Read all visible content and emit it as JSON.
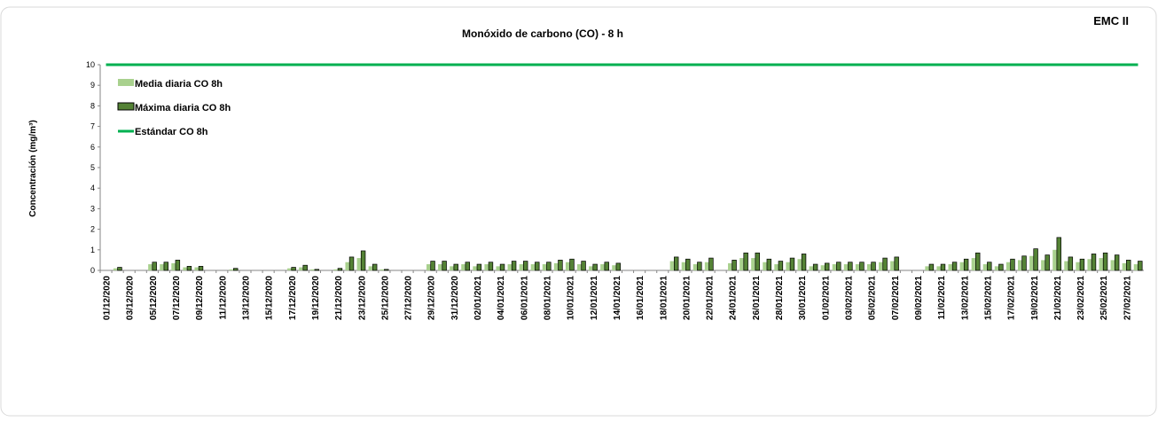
{
  "chart_data": {
    "type": "bar",
    "title": "Monóxido de carbono (CO) - 8 h",
    "station": "EMC II",
    "ylabel": "Concentración (mg/m³)",
    "ylim": [
      0,
      10
    ],
    "yticks": [
      0,
      1,
      2,
      3,
      4,
      5,
      6,
      7,
      8,
      9,
      10
    ],
    "legend": "upper left",
    "categories": [
      "01/12/2020",
      null,
      "03/12/2020",
      null,
      "05/12/2020",
      null,
      "07/12/2020",
      null,
      "09/12/2020",
      null,
      "11/12/2020",
      null,
      "13/12/2020",
      null,
      "15/12/2020",
      null,
      "17/12/2020",
      null,
      "19/12/2020",
      null,
      "21/12/2020",
      null,
      "23/12/2020",
      null,
      "25/12/2020",
      null,
      "27/12/2020",
      null,
      "29/12/2020",
      null,
      "31/12/2020",
      null,
      "02/01/2021",
      null,
      "04/01/2021",
      null,
      "06/01/2021",
      null,
      "08/01/2021",
      null,
      "10/01/2021",
      null,
      "12/01/2021",
      null,
      "14/01/2021",
      null,
      "16/01/2021",
      null,
      "18/01/2021",
      null,
      "20/01/2021",
      null,
      "22/01/2021",
      null,
      "24/01/2021",
      null,
      "26/01/2021",
      null,
      "28/01/2021",
      null,
      "30/01/2021",
      null,
      "01/02/2021",
      null,
      "03/02/2021",
      null,
      "05/02/2021",
      null,
      "07/02/2021",
      null,
      "09/02/2021",
      null,
      "11/02/2021",
      null,
      "13/02/2021",
      null,
      "15/02/2021",
      null,
      "17/02/2021",
      null,
      "19/02/2021",
      null,
      "21/02/2021",
      null,
      "23/02/2021",
      null,
      "25/02/2021",
      null,
      "27/02/2021",
      null
    ],
    "series": [
      {
        "name": "Media diaria CO 8h",
        "kind": "bar",
        "color": "#a9d18e",
        "values": [
          null,
          0.1,
          null,
          null,
          0.3,
          0.3,
          0.35,
          0.15,
          0.15,
          null,
          null,
          0.05,
          null,
          null,
          null,
          null,
          0.1,
          0.15,
          0.05,
          null,
          0.05,
          0.4,
          0.6,
          0.2,
          0.05,
          null,
          null,
          null,
          0.3,
          0.3,
          0.2,
          0.3,
          0.2,
          0.3,
          0.2,
          0.3,
          0.3,
          0.3,
          0.3,
          0.35,
          0.4,
          0.3,
          0.2,
          0.3,
          0.25,
          null,
          null,
          null,
          null,
          0.45,
          0.4,
          0.3,
          0.4,
          null,
          0.35,
          0.6,
          0.6,
          0.4,
          0.3,
          0.4,
          0.55,
          0.2,
          0.25,
          0.3,
          0.3,
          0.3,
          0.3,
          0.4,
          0.45,
          null,
          null,
          0.2,
          0.2,
          0.3,
          0.4,
          0.6,
          0.3,
          0.2,
          0.4,
          0.5,
          0.7,
          0.5,
          1.0,
          0.45,
          0.4,
          0.55,
          0.6,
          0.5,
          0.35,
          0.3
        ]
      },
      {
        "name": "Máxima diaria CO 8h",
        "kind": "bar",
        "color": "#548235",
        "values": [
          null,
          0.15,
          null,
          null,
          0.4,
          0.4,
          0.5,
          0.2,
          0.2,
          null,
          null,
          0.1,
          null,
          null,
          null,
          null,
          0.15,
          0.25,
          0.05,
          null,
          0.1,
          0.65,
          0.95,
          0.3,
          0.05,
          null,
          null,
          null,
          0.45,
          0.45,
          0.3,
          0.4,
          0.3,
          0.4,
          0.3,
          0.45,
          0.45,
          0.4,
          0.4,
          0.5,
          0.55,
          0.45,
          0.3,
          0.4,
          0.35,
          null,
          null,
          null,
          null,
          0.65,
          0.55,
          0.4,
          0.6,
          null,
          0.5,
          0.85,
          0.85,
          0.55,
          0.45,
          0.6,
          0.8,
          0.3,
          0.35,
          0.4,
          0.4,
          0.4,
          0.4,
          0.6,
          0.65,
          null,
          null,
          0.3,
          0.3,
          0.4,
          0.55,
          0.85,
          0.4,
          0.3,
          0.55,
          0.7,
          1.05,
          0.75,
          1.6,
          0.65,
          0.55,
          0.8,
          0.85,
          0.75,
          0.5,
          0.45
        ]
      },
      {
        "name": "Estándar CO 8h",
        "kind": "line",
        "color": "#00b050",
        "values": [
          10,
          10,
          10,
          10,
          10,
          10,
          10,
          10,
          10,
          10,
          10,
          10,
          10,
          10,
          10,
          10,
          10,
          10,
          10,
          10,
          10,
          10,
          10,
          10,
          10,
          10,
          10,
          10,
          10,
          10,
          10,
          10,
          10,
          10,
          10,
          10,
          10,
          10,
          10,
          10,
          10,
          10,
          10,
          10,
          10,
          10,
          10,
          10,
          10,
          10,
          10,
          10,
          10,
          10,
          10,
          10,
          10,
          10,
          10,
          10,
          10,
          10,
          10,
          10,
          10,
          10,
          10,
          10,
          10,
          10,
          10,
          10,
          10,
          10,
          10,
          10,
          10,
          10,
          10,
          10,
          10,
          10,
          10,
          10,
          10,
          10,
          10,
          10,
          10,
          10
        ]
      }
    ]
  }
}
